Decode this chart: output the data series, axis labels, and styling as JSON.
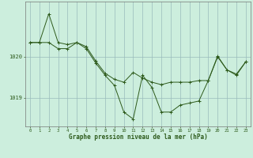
{
  "xlabel": "Graphe pression niveau de la mer (hPa)",
  "background_color": "#cceedd",
  "line_color": "#2d5a1b",
  "grid_color": "#99bbbb",
  "hours": [
    0,
    1,
    2,
    3,
    4,
    5,
    6,
    7,
    8,
    9,
    10,
    11,
    12,
    13,
    14,
    15,
    16,
    17,
    18,
    19,
    20,
    21,
    22,
    23
  ],
  "series1": [
    1020.35,
    1020.35,
    1021.05,
    1020.35,
    1020.3,
    1020.35,
    1020.25,
    1019.9,
    1019.6,
    1019.45,
    1019.38,
    1019.62,
    1019.48,
    1019.38,
    1019.32,
    1019.38,
    1019.38,
    1019.38,
    1019.42,
    1019.42,
    1020.0,
    1019.68,
    1019.58,
    1019.88
  ],
  "series2": [
    1020.35,
    1020.35,
    1020.35,
    1020.2,
    1020.2,
    1020.35,
    1020.2,
    1019.85,
    1019.55,
    1019.3,
    1018.65,
    1018.48,
    1019.55,
    1019.25,
    1018.65,
    1018.65,
    1018.82,
    1018.87,
    1018.92,
    1019.42,
    1020.02,
    1019.68,
    1019.55,
    1019.88
  ],
  "ylim_min": 1018.3,
  "ylim_max": 1021.35,
  "yticks": [
    1019.0,
    1020.0
  ],
  "xlim_min": -0.5,
  "xlim_max": 23.5
}
